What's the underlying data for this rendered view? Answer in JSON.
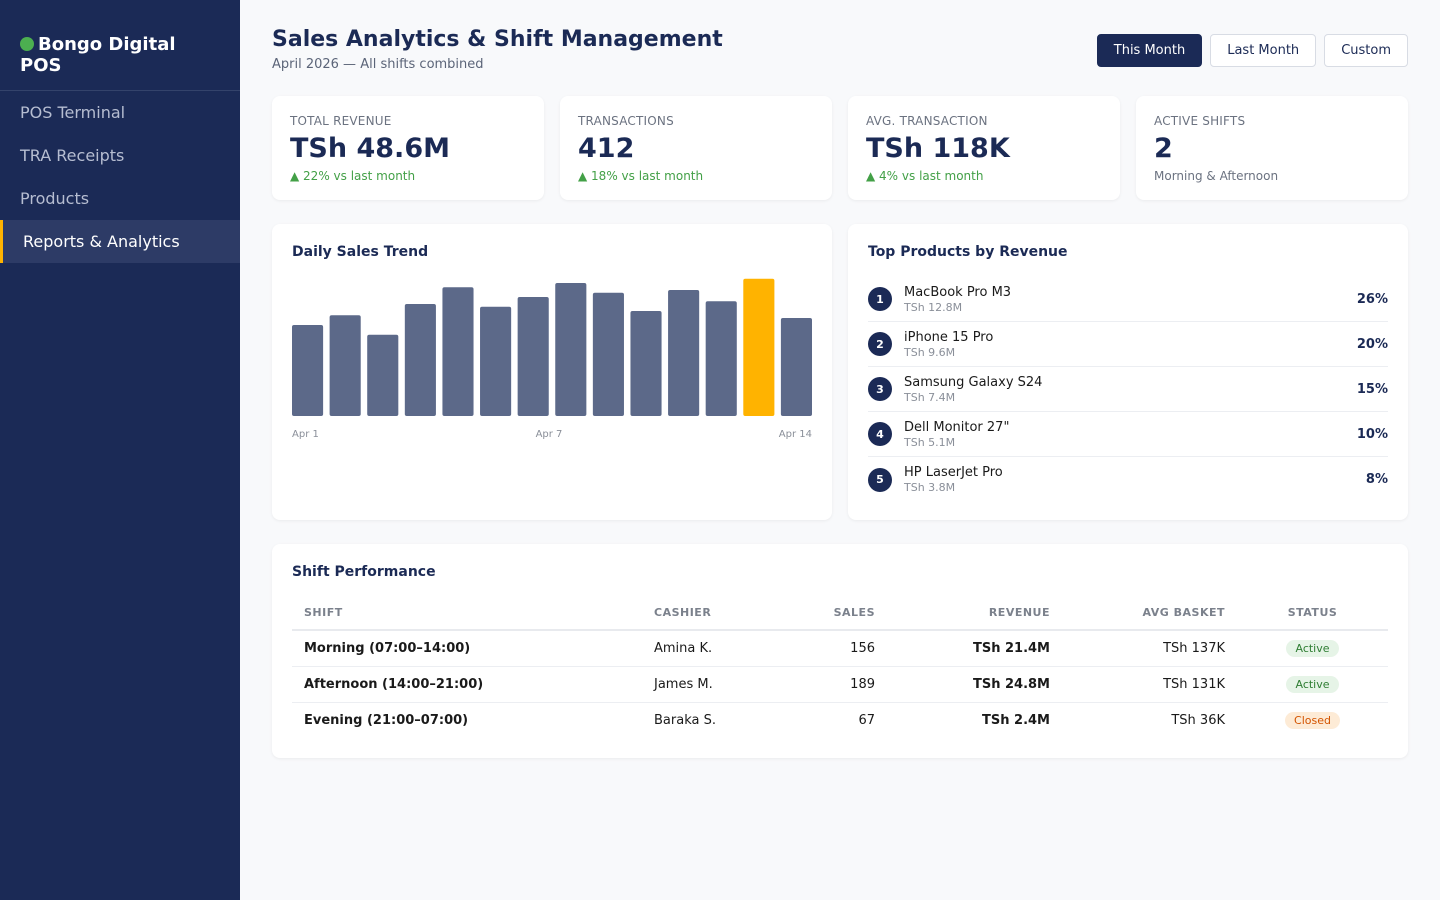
{
  "sidebar": {
    "brand": "Bongo Digital POS",
    "items": [
      {
        "label": "POS Terminal",
        "active": false
      },
      {
        "label": "TRA Receipts",
        "active": false
      },
      {
        "label": "Products",
        "active": false
      },
      {
        "label": "Reports & Analytics",
        "active": true
      }
    ]
  },
  "header": {
    "title": "Sales Analytics & Shift Management",
    "subtitle": "April 2026 — All shifts combined",
    "periods": [
      {
        "label": "This Month",
        "active": true
      },
      {
        "label": "Last Month",
        "active": false
      },
      {
        "label": "Custom",
        "active": false
      }
    ]
  },
  "kpis": [
    {
      "label": "TOTAL REVENUE",
      "value": "TSh 48.6M",
      "sub": "▲ 22% vs last month",
      "trend": "up"
    },
    {
      "label": "TRANSACTIONS",
      "value": "412",
      "sub": "▲ 18% vs last month",
      "trend": "up"
    },
    {
      "label": "AVG. TRANSACTION",
      "value": "TSh 118K",
      "sub": "▲ 4% vs last month",
      "trend": "up"
    },
    {
      "label": "ACTIVE SHIFTS",
      "value": "2",
      "sub": "Morning & Afternoon",
      "trend": "neutral"
    }
  ],
  "chart_card": {
    "title": "Daily Sales Trend"
  },
  "chart_data": {
    "type": "bar",
    "title": "Daily Sales Trend",
    "categories": [
      "Apr 1",
      "Apr 2",
      "Apr 3",
      "Apr 4",
      "Apr 5",
      "Apr 6",
      "Apr 7",
      "Apr 8",
      "Apr 9",
      "Apr 10",
      "Apr 11",
      "Apr 12",
      "Apr 13",
      "Apr 14"
    ],
    "tick_labels": [
      "Apr 1",
      "Apr 7",
      "Apr 14"
    ],
    "values": [
      65,
      72,
      58,
      80,
      92,
      78,
      85,
      95,
      88,
      75,
      90,
      82,
      98,
      70
    ],
    "highlight_index": 12,
    "bar_color": "#5c6989",
    "highlight_color": "#ffb300",
    "ylim": [
      0,
      100
    ]
  },
  "products": {
    "title": "Top Products by Revenue",
    "items": [
      {
        "rank": "1",
        "name": "MacBook Pro M3",
        "revenue": "TSh 12.8M",
        "pct": "26%"
      },
      {
        "rank": "2",
        "name": "iPhone 15 Pro",
        "revenue": "TSh 9.6M",
        "pct": "20%"
      },
      {
        "rank": "3",
        "name": "Samsung Galaxy S24",
        "revenue": "TSh 7.4M",
        "pct": "15%"
      },
      {
        "rank": "4",
        "name": "Dell Monitor 27\"",
        "revenue": "TSh 5.1M",
        "pct": "10%"
      },
      {
        "rank": "5",
        "name": "HP LaserJet Pro",
        "revenue": "TSh 3.8M",
        "pct": "8%"
      }
    ]
  },
  "shifts": {
    "title": "Shift Performance",
    "columns": [
      "SHIFT",
      "CASHIER",
      "SALES",
      "REVENUE",
      "AVG BASKET",
      "STATUS"
    ],
    "rows": [
      {
        "shift": "Morning (07:00–14:00)",
        "cashier": "Amina K.",
        "sales": "156",
        "revenue": "TSh 21.4M",
        "avg": "TSh 137K",
        "status": "Active"
      },
      {
        "shift": "Afternoon (14:00–21:00)",
        "cashier": "James M.",
        "sales": "189",
        "revenue": "TSh 24.8M",
        "avg": "TSh 131K",
        "status": "Active"
      },
      {
        "shift": "Evening (21:00–07:00)",
        "cashier": "Baraka S.",
        "sales": "67",
        "revenue": "TSh 2.4M",
        "avg": "TSh 36K",
        "status": "Closed"
      }
    ]
  },
  "colors": {
    "sidebar_bg": "#1b2a56",
    "accent": "#ffb300",
    "brand_dot": "#4caf50",
    "positive": "#43a047"
  }
}
